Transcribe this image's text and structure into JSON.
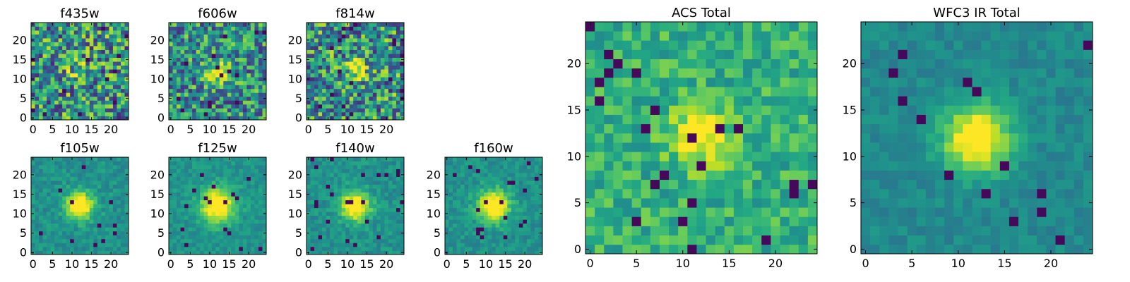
{
  "chart_data": [
    {
      "type": "heatmap",
      "title": "f435w",
      "grid_size": 25,
      "xlim": [
        -0.5,
        24.5
      ],
      "ylim": [
        -0.5,
        24.5
      ],
      "xticks": [
        0,
        5,
        10,
        15,
        20
      ],
      "yticks": [
        0,
        5,
        10,
        15,
        20
      ],
      "colormap": "viridis",
      "source": {
        "peak": 0.25,
        "x0": 12,
        "y0": 12,
        "sigma": 2.0,
        "noise": 0.62,
        "low": 0.1,
        "high": 0.92
      },
      "grid": false
    },
    {
      "type": "heatmap",
      "title": "f606w",
      "grid_size": 25,
      "xlim": [
        -0.5,
        24.5
      ],
      "ylim": [
        -0.5,
        24.5
      ],
      "xticks": [
        0,
        5,
        10,
        15,
        20
      ],
      "yticks": [
        0,
        5,
        10,
        15,
        20
      ],
      "colormap": "viridis",
      "source": {
        "peak": 0.45,
        "x0": 12,
        "y0": 12,
        "sigma": 1.8,
        "noise": 0.55,
        "low": 0.1,
        "high": 0.9
      },
      "grid": false
    },
    {
      "type": "heatmap",
      "title": "f814w",
      "grid_size": 25,
      "xlim": [
        -0.5,
        24.5
      ],
      "ylim": [
        -0.5,
        24.5
      ],
      "xticks": [
        0,
        5,
        10,
        15,
        20
      ],
      "yticks": [
        0,
        5,
        10,
        15,
        20
      ],
      "colormap": "viridis",
      "source": {
        "peak": 0.42,
        "x0": 12,
        "y0": 12,
        "sigma": 1.9,
        "noise": 0.6,
        "low": 0.1,
        "high": 0.92
      },
      "grid": false
    },
    {
      "type": "heatmap",
      "title": "f105w",
      "grid_size": 25,
      "xlim": [
        -0.5,
        24.5
      ],
      "ylim": [
        -0.5,
        24.5
      ],
      "xticks": [
        0,
        5,
        10,
        15,
        20
      ],
      "yticks": [
        0,
        5,
        10,
        15,
        20
      ],
      "colormap": "viridis",
      "source": {
        "peak": 0.7,
        "x0": 12,
        "y0": 12,
        "sigma": 2.4,
        "noise": 0.3,
        "low": 0.3,
        "high": 0.72
      },
      "grid": false
    },
    {
      "type": "heatmap",
      "title": "f125w",
      "grid_size": 25,
      "xlim": [
        -0.5,
        24.5
      ],
      "ylim": [
        -0.5,
        24.5
      ],
      "xticks": [
        0,
        5,
        10,
        15,
        20
      ],
      "yticks": [
        0,
        5,
        10,
        15,
        20
      ],
      "colormap": "viridis",
      "source": {
        "peak": 0.65,
        "x0": 12,
        "y0": 12,
        "sigma": 3.0,
        "noise": 0.28,
        "low": 0.32,
        "high": 0.72
      },
      "grid": false
    },
    {
      "type": "heatmap",
      "title": "f140w",
      "grid_size": 25,
      "xlim": [
        -0.5,
        24.5
      ],
      "ylim": [
        -0.5,
        24.5
      ],
      "xticks": [
        0,
        5,
        10,
        15,
        20
      ],
      "yticks": [
        0,
        5,
        10,
        15,
        20
      ],
      "colormap": "viridis",
      "source": {
        "peak": 0.65,
        "x0": 12,
        "y0": 12,
        "sigma": 2.6,
        "noise": 0.3,
        "low": 0.3,
        "high": 0.72
      },
      "grid": false
    },
    {
      "type": "heatmap",
      "title": "f160w",
      "grid_size": 25,
      "xlim": [
        -0.5,
        24.5
      ],
      "ylim": [
        -0.5,
        24.5
      ],
      "xticks": [
        0,
        5,
        10,
        15,
        20
      ],
      "yticks": [
        0,
        5,
        10,
        15,
        20
      ],
      "colormap": "viridis",
      "source": {
        "peak": 0.65,
        "x0": 12,
        "y0": 12,
        "sigma": 2.8,
        "noise": 0.28,
        "low": 0.3,
        "high": 0.72
      },
      "grid": false
    },
    {
      "type": "heatmap",
      "title": "ACS Total",
      "grid_size": 25,
      "xlim": [
        -0.5,
        24.5
      ],
      "ylim": [
        -0.5,
        24.5
      ],
      "xticks": [
        0,
        5,
        10,
        15,
        20
      ],
      "yticks": [
        0,
        5,
        10,
        15,
        20
      ],
      "colormap": "viridis",
      "source": {
        "peak": 0.42,
        "x0": 12,
        "y0": 12,
        "sigma": 2.2,
        "noise": 0.42,
        "low": 0.4,
        "high": 0.88
      },
      "grid": false
    },
    {
      "type": "heatmap",
      "title": "WFC3 IR Total",
      "grid_size": 25,
      "xlim": [
        -0.5,
        24.5
      ],
      "ylim": [
        -0.5,
        24.5
      ],
      "xticks": [
        0,
        5,
        10,
        15,
        20
      ],
      "yticks": [
        0,
        5,
        10,
        15,
        20
      ],
      "colormap": "viridis",
      "source": {
        "peak": 0.62,
        "x0": 12,
        "y0": 12,
        "sigma": 2.6,
        "noise": 0.24,
        "low": 0.28,
        "high": 0.66
      },
      "grid": false
    }
  ]
}
